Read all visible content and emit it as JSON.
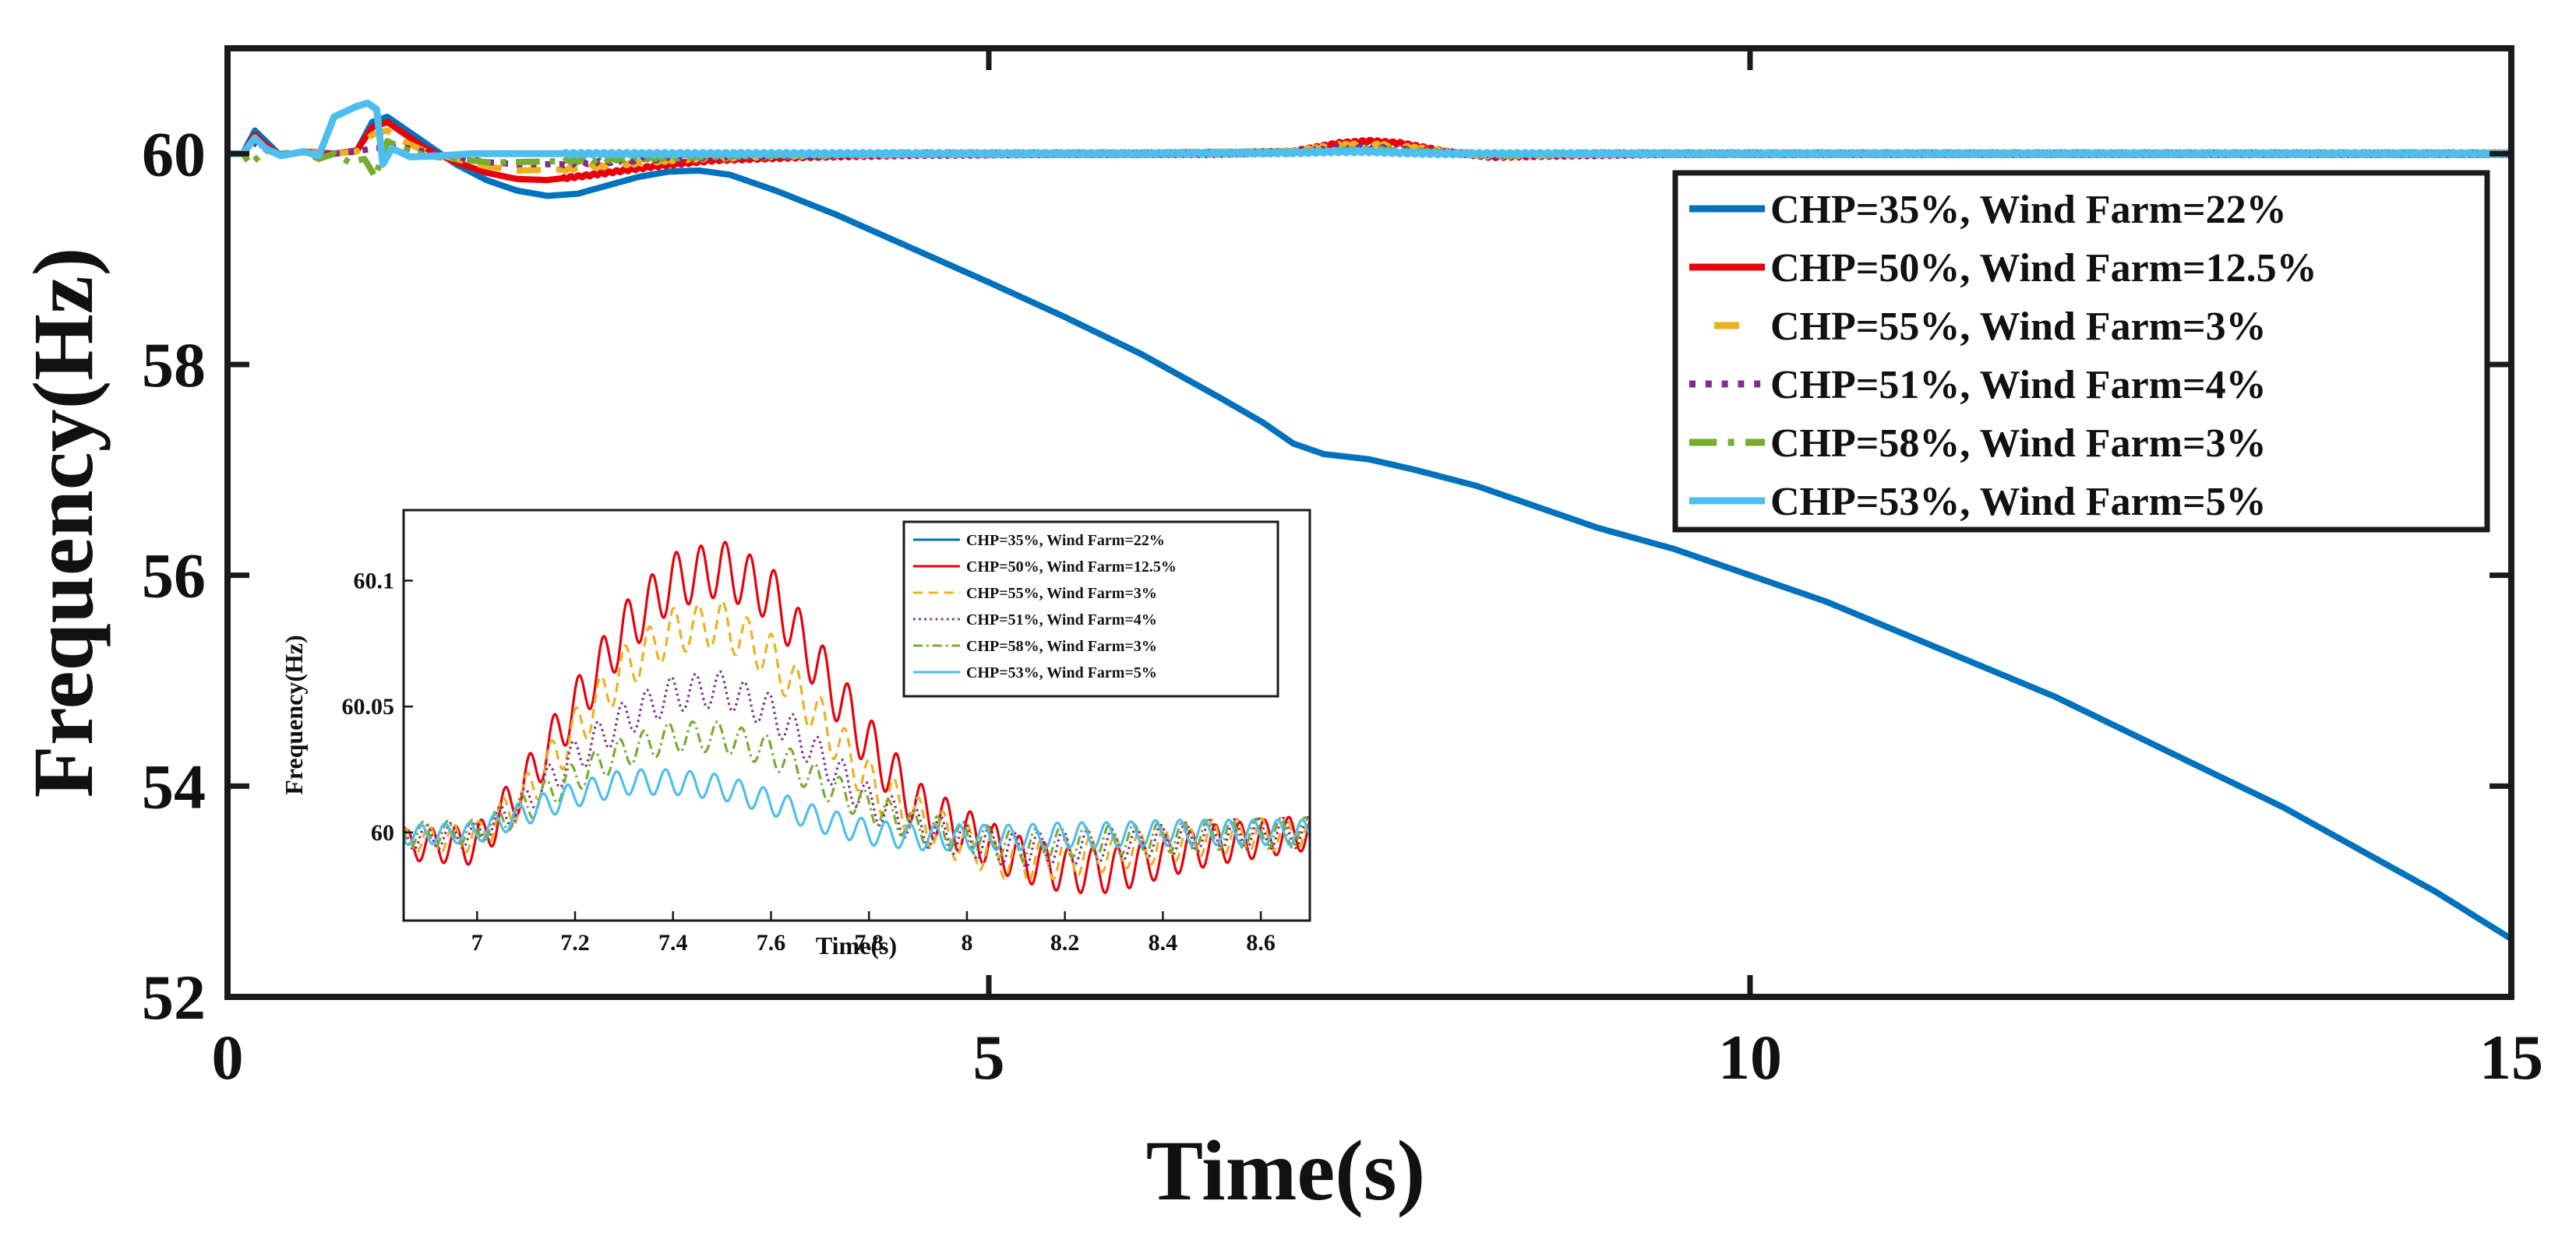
{
  "chart_data": [
    {
      "id": "main",
      "type": "line",
      "title": "",
      "xlabel": "Time(s)",
      "ylabel": "Frequency(Hz)",
      "xlim": [
        0,
        15
      ],
      "ylim": [
        52,
        61
      ],
      "xticks": [
        0,
        5,
        10,
        15
      ],
      "xtick_labels": [
        "0",
        "5",
        "10",
        "15"
      ],
      "yticks": [
        52,
        54,
        56,
        58,
        60
      ],
      "ytick_labels": [
        "52",
        "54",
        "56",
        "58",
        "60"
      ],
      "grid": false,
      "legend_position": "top-right",
      "series": [
        {
          "name": "CHP=35%, Wind Farm=22%",
          "color": "#0072BD",
          "dash": "solid",
          "x": [
            0,
            0.1,
            0.18,
            0.25,
            0.35,
            0.5,
            0.7,
            0.85,
            0.95,
            1.05,
            1.15,
            1.3,
            1.5,
            1.7,
            1.9,
            2.1,
            2.3,
            2.5,
            2.7,
            2.9,
            3.1,
            3.3,
            3.6,
            4.0,
            4.5,
            5.0,
            5.5,
            6.0,
            6.5,
            6.8,
            7.0,
            7.2,
            7.5,
            7.8,
            8.2,
            8.6,
            9.0,
            9.5,
            10.0,
            10.5,
            11.0,
            11.5,
            12.0,
            12.5,
            13.0,
            13.5,
            14.0,
            14.5,
            15.0
          ],
          "y": [
            60.0,
            60.0,
            60.22,
            60.12,
            59.98,
            60.02,
            60.0,
            60.03,
            60.3,
            60.35,
            60.25,
            60.1,
            59.9,
            59.75,
            59.65,
            59.6,
            59.62,
            59.7,
            59.78,
            59.83,
            59.84,
            59.8,
            59.65,
            59.42,
            59.1,
            58.78,
            58.45,
            58.1,
            57.7,
            57.45,
            57.25,
            57.15,
            57.1,
            57.0,
            56.85,
            56.65,
            56.45,
            56.25,
            56.0,
            55.75,
            55.45,
            55.15,
            54.85,
            54.5,
            54.15,
            53.8,
            53.4,
            53.0,
            52.55
          ]
        },
        {
          "name": "CHP=50%, Wind Farm=12.5%",
          "color": "#E8000B",
          "dash": "solid",
          "x": [
            0,
            0.1,
            0.18,
            0.25,
            0.35,
            0.5,
            0.7,
            0.85,
            0.95,
            1.05,
            1.15,
            1.3,
            1.5,
            1.7,
            1.9,
            2.1,
            2.4,
            2.8,
            3.2,
            3.8,
            4.5,
            5.5,
            6.5,
            7.0,
            7.3,
            7.5,
            7.7,
            8.0,
            8.3,
            8.6,
            9.5,
            11.0,
            13.0,
            15.0
          ],
          "y": [
            60.0,
            60.0,
            60.18,
            60.08,
            59.98,
            60.02,
            60.0,
            60.03,
            60.25,
            60.3,
            60.2,
            60.05,
            59.92,
            59.82,
            59.76,
            59.75,
            59.8,
            59.88,
            59.94,
            59.97,
            59.99,
            60.0,
            60.0,
            60.02,
            60.1,
            60.12,
            60.1,
            60.02,
            59.97,
            59.98,
            60.0,
            60.0,
            60.0,
            60.0
          ]
        },
        {
          "name": "CHP=55%, Wind Farm=3%",
          "color": "#EDB120",
          "dash": "dash",
          "x": [
            0,
            0.1,
            0.18,
            0.25,
            0.35,
            0.5,
            0.7,
            0.85,
            0.95,
            1.05,
            1.15,
            1.3,
            1.5,
            1.7,
            1.9,
            2.2,
            2.6,
            3.0,
            3.6,
            4.5,
            6.0,
            7.0,
            7.3,
            7.5,
            7.7,
            8.0,
            8.3,
            9.0,
            11.0,
            13.0,
            15.0
          ],
          "y": [
            60.0,
            60.0,
            60.12,
            60.05,
            59.99,
            60.01,
            60.0,
            60.02,
            60.18,
            60.22,
            60.12,
            60.02,
            59.95,
            59.88,
            59.84,
            59.85,
            59.9,
            59.95,
            59.98,
            60.0,
            60.0,
            60.02,
            60.08,
            60.09,
            60.07,
            60.02,
            59.98,
            60.0,
            60.0,
            60.0,
            60.0
          ]
        },
        {
          "name": "CHP=51%, Wind Farm=4%",
          "color": "#7E2F8E",
          "dash": "dot",
          "x": [
            0,
            0.1,
            0.18,
            0.25,
            0.35,
            0.5,
            0.7,
            0.85,
            0.95,
            1.05,
            1.15,
            1.3,
            1.5,
            1.7,
            1.9,
            2.2,
            2.6,
            3.0,
            3.6,
            4.5,
            6.0,
            7.0,
            7.3,
            7.5,
            7.7,
            8.0,
            8.3,
            9.0,
            11.0,
            13.0,
            15.0
          ],
          "y": [
            60.0,
            60.0,
            60.1,
            60.04,
            59.99,
            60.01,
            60.0,
            60.02,
            60.05,
            60.06,
            60.06,
            60.02,
            59.97,
            59.92,
            59.9,
            59.9,
            59.93,
            59.96,
            59.98,
            60.0,
            60.0,
            60.01,
            60.05,
            60.06,
            60.04,
            60.01,
            59.99,
            60.0,
            60.0,
            60.0,
            60.0
          ]
        },
        {
          "name": "CHP=58%, Wind Farm=3%",
          "color": "#77AC30",
          "dash": "dashdot",
          "x": [
            0,
            0.1,
            0.15,
            0.25,
            0.35,
            0.5,
            0.6,
            0.7,
            0.8,
            0.9,
            0.97,
            1.05,
            1.15,
            1.3,
            1.5,
            1.7,
            1.9,
            2.2,
            2.6,
            3.0,
            3.6,
            4.5,
            6.0,
            7.0,
            7.3,
            7.5,
            7.7,
            8.0,
            8.3,
            9.0,
            11.0,
            13.0,
            15.0
          ],
          "y": [
            60.0,
            60.0,
            59.9,
            60.03,
            60.0,
            60.02,
            59.95,
            60.0,
            59.92,
            59.95,
            59.78,
            60.12,
            60.05,
            59.98,
            59.95,
            59.92,
            59.92,
            59.93,
            59.95,
            59.97,
            59.99,
            60.0,
            60.0,
            60.01,
            60.03,
            60.04,
            60.03,
            60.01,
            59.99,
            60.0,
            60.0,
            60.0,
            60.0
          ]
        },
        {
          "name": "CHP=53%, Wind Farm=5%",
          "color": "#4DBEEE",
          "dash": "solid",
          "x": [
            0,
            0.1,
            0.18,
            0.25,
            0.35,
            0.5,
            0.6,
            0.7,
            0.85,
            0.92,
            0.98,
            1.02,
            1.08,
            1.2,
            1.4,
            1.6,
            1.9,
            2.3,
            3.0,
            4.0,
            6.0,
            7.0,
            7.3,
            7.5,
            7.7,
            8.0,
            8.3,
            9.0,
            11.0,
            13.0,
            15.0
          ],
          "y": [
            60.0,
            60.0,
            60.15,
            60.05,
            59.98,
            60.02,
            59.98,
            60.35,
            60.45,
            60.48,
            60.42,
            59.9,
            60.05,
            59.97,
            59.98,
            60.0,
            60.0,
            60.0,
            60.0,
            60.0,
            60.0,
            60.01,
            60.02,
            60.02,
            60.01,
            60.0,
            60.0,
            60.0,
            60.0,
            60.0,
            60.0
          ]
        }
      ]
    },
    {
      "id": "inset",
      "type": "line",
      "title": "",
      "xlabel": "Time(s)",
      "ylabel": "Frequency(Hz)",
      "xlim": [
        6.85,
        8.7
      ],
      "ylim": [
        59.965,
        60.128
      ],
      "xticks": [
        7,
        7.2,
        7.4,
        7.6,
        7.8,
        8,
        8.2,
        8.4,
        8.6
      ],
      "xtick_labels": [
        "7",
        "7.2",
        "7.4",
        "7.6",
        "7.8",
        "8",
        "8.2",
        "8.4",
        "8.6"
      ],
      "yticks": [
        60,
        60.05,
        60.1
      ],
      "ytick_labels": [
        "60",
        "60.05",
        "60.1"
      ],
      "grid": false,
      "legend_position": "top-right",
      "oscillation_period_s": 0.05,
      "series": [
        {
          "name": "CHP=35%, Wind Farm=22%",
          "color": "#0072BD",
          "dash": "solid",
          "x": [],
          "y": []
        },
        {
          "name": "CHP=50%, Wind Farm=12.5%",
          "color": "#E8000B",
          "dash": "solid",
          "x": [
            6.85,
            7.0,
            7.1,
            7.2,
            7.3,
            7.4,
            7.5,
            7.6,
            7.7,
            7.8,
            7.9,
            8.0,
            8.1,
            8.2,
            8.3,
            8.4,
            8.5,
            8.7
          ],
          "y": [
            59.995,
            59.995,
            60.02,
            60.05,
            60.08,
            60.1,
            60.105,
            60.095,
            60.065,
            60.035,
            60.01,
            60.0,
            59.99,
            59.985,
            59.985,
            59.99,
            59.995,
            60.0
          ],
          "osc_amp": [
            0.006,
            0.008,
            0.009,
            0.01,
            0.011,
            0.011,
            0.011,
            0.011,
            0.011,
            0.011,
            0.01,
            0.009,
            0.009,
            0.009,
            0.009,
            0.008,
            0.008,
            0.007
          ]
        },
        {
          "name": "CHP=55%, Wind Farm=3%",
          "color": "#EDB120",
          "dash": "dash",
          "x": [
            6.85,
            7.0,
            7.1,
            7.2,
            7.3,
            7.4,
            7.5,
            7.6,
            7.7,
            7.8,
            7.9,
            8.0,
            8.1,
            8.2,
            8.3,
            8.4,
            8.5,
            8.7
          ],
          "y": [
            59.997,
            59.998,
            60.015,
            60.04,
            60.065,
            60.08,
            60.083,
            60.07,
            60.045,
            60.02,
            60.005,
            59.995,
            59.988,
            59.99,
            59.992,
            59.995,
            59.998,
            60.0
          ],
          "osc_amp": [
            0.005,
            0.006,
            0.008,
            0.009,
            0.009,
            0.009,
            0.009,
            0.009,
            0.009,
            0.009,
            0.009,
            0.008,
            0.008,
            0.008,
            0.007,
            0.007,
            0.007,
            0.006
          ]
        },
        {
          "name": "CHP=51%, Wind Farm=4%",
          "color": "#7E2F8E",
          "dash": "dot",
          "x": [
            6.85,
            7.0,
            7.1,
            7.2,
            7.3,
            7.4,
            7.5,
            7.6,
            7.7,
            7.8,
            7.9,
            8.0,
            8.1,
            8.2,
            8.3,
            8.4,
            8.5,
            8.7
          ],
          "y": [
            59.998,
            59.999,
            60.012,
            60.03,
            60.045,
            60.055,
            60.057,
            60.048,
            60.03,
            60.012,
            60.002,
            59.997,
            59.993,
            59.994,
            59.995,
            59.997,
            59.999,
            60.0
          ],
          "osc_amp": [
            0.005,
            0.005,
            0.006,
            0.007,
            0.007,
            0.007,
            0.007,
            0.007,
            0.007,
            0.007,
            0.007,
            0.007,
            0.007,
            0.007,
            0.006,
            0.006,
            0.006,
            0.006
          ]
        },
        {
          "name": "CHP=58%, Wind Farm=3%",
          "color": "#77AC30",
          "dash": "dashdot",
          "x": [
            6.85,
            7.0,
            7.1,
            7.2,
            7.3,
            7.4,
            7.5,
            7.6,
            7.7,
            7.8,
            7.9,
            8.0,
            8.1,
            8.2,
            8.3,
            8.4,
            8.5,
            8.7
          ],
          "y": [
            59.999,
            60.0,
            60.01,
            60.022,
            60.032,
            60.038,
            60.038,
            60.032,
            60.02,
            60.01,
            60.002,
            59.998,
            59.995,
            59.996,
            59.997,
            59.998,
            59.999,
            60.0
          ],
          "osc_amp": [
            0.005,
            0.005,
            0.006,
            0.006,
            0.006,
            0.006,
            0.006,
            0.006,
            0.006,
            0.006,
            0.006,
            0.006,
            0.006,
            0.006,
            0.006,
            0.006,
            0.006,
            0.006
          ]
        },
        {
          "name": "CHP=53%, Wind Farm=5%",
          "color": "#4DBEEE",
          "dash": "solid",
          "x": [
            6.85,
            7.0,
            7.1,
            7.2,
            7.3,
            7.4,
            7.5,
            7.6,
            7.7,
            7.8,
            7.9,
            8.0,
            8.1,
            8.2,
            8.3,
            8.4,
            8.5,
            8.7
          ],
          "y": [
            59.999,
            60.0,
            60.008,
            60.015,
            60.02,
            60.02,
            60.018,
            60.012,
            60.005,
            60.0,
            59.998,
            59.998,
            59.998,
            59.999,
            59.999,
            60.0,
            60.0,
            60.0
          ],
          "osc_amp": [
            0.004,
            0.004,
            0.005,
            0.005,
            0.005,
            0.005,
            0.005,
            0.005,
            0.005,
            0.005,
            0.005,
            0.005,
            0.005,
            0.005,
            0.005,
            0.005,
            0.005,
            0.005
          ]
        }
      ]
    }
  ]
}
